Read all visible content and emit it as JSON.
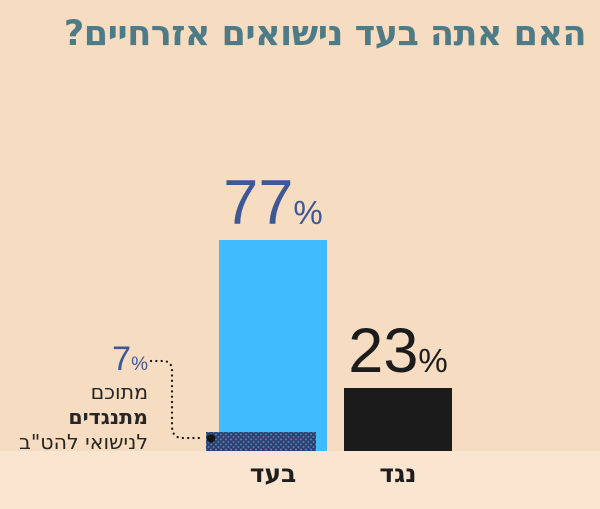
{
  "title": {
    "text": "האם אתה בעד נישואים אזרחיים?",
    "color": "#4e7b88"
  },
  "ui": {
    "percent_sign": "%"
  },
  "colors": {
    "background": "#f6ddc1",
    "footer_background": "#fae6d0",
    "bar_for": "#3ebcfd",
    "bar_against": "#1b1b1b",
    "value_label_for": "#3e5795",
    "value_label_against": "#1c1c1c",
    "pattern_dot": "#333e6d",
    "connector": "#151515"
  },
  "chart_data": {
    "type": "bar",
    "title": "האם אתה בעד נישואים אזרחיים?",
    "direction": "rtl",
    "categories": [
      "בעד",
      "נגד"
    ],
    "values": [
      77,
      23
    ],
    "unit": "%",
    "ylim": [
      0,
      100
    ],
    "grid": false,
    "legend": false,
    "bar_colors": [
      "#3ebcfd",
      "#1b1b1b"
    ],
    "annotation": {
      "value": 7,
      "unit": "%",
      "text_lines": [
        "מתוכם",
        "מתנגדים",
        "לנישואי להט\"ב"
      ],
      "bold_line_index": 1,
      "target_category": "בעד",
      "style": "dotted-pattern-overlay-at-bar-base"
    }
  }
}
